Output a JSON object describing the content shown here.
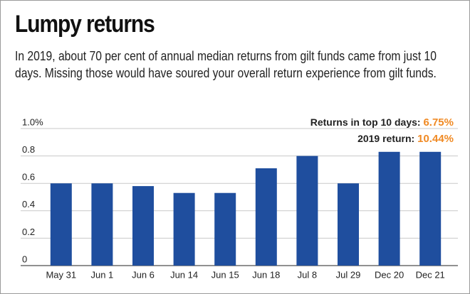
{
  "chart_data": {
    "type": "bar",
    "title": "Lumpy returns",
    "subtitle": "In 2019, about 70 per cent of annual median returns from gilt funds came from just 10 days. Missing those would have soured your overall return experience from gilt funds.",
    "annotations": [
      {
        "label": "Returns in top 10 days: ",
        "value": "6.75%"
      },
      {
        "label": "2019 return: ",
        "value": "10.44%"
      }
    ],
    "categories": [
      "May 31",
      "Jun 1",
      "Jun 6",
      "Jun 14",
      "Jun 15",
      "Jun 18",
      "Jul 8",
      "Jul 29",
      "Dec 20",
      "Dec 21"
    ],
    "values": [
      0.6,
      0.6,
      0.58,
      0.53,
      0.53,
      0.71,
      0.8,
      0.6,
      0.83,
      0.83
    ],
    "color": "#1f4e9e",
    "ylim": [
      0,
      1
    ],
    "yticks": [
      0,
      0.2,
      0.4,
      0.6,
      0.8,
      {
        "value": 1,
        "label": "1.0%"
      }
    ],
    "grid": true
  }
}
